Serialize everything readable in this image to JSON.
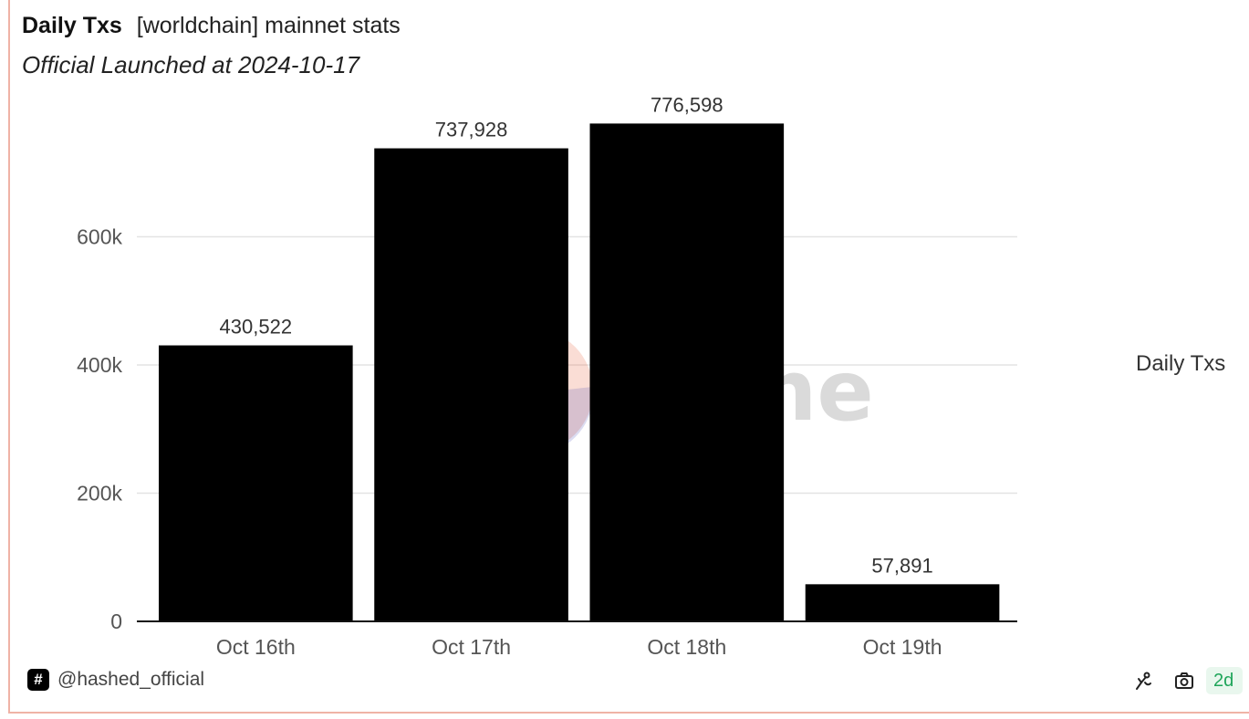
{
  "header": {
    "title": "Daily Txs",
    "subtitle_inline": "[worldchain] mainnet stats",
    "subtitle": "Official Launched at 2024-10-17"
  },
  "chart_data": {
    "type": "bar",
    "categories": [
      "Oct 16th",
      "Oct 17th",
      "Oct 18th",
      "Oct 19th"
    ],
    "series": [
      {
        "name": "Daily Txs",
        "values": [
          430522,
          737928,
          776598,
          57891
        ]
      }
    ],
    "data_labels": [
      "430,522",
      "737,928",
      "776,598",
      "57,891"
    ],
    "y_ticks": [
      0,
      200000,
      400000,
      600000
    ],
    "y_tick_labels": [
      "0",
      "200k",
      "400k",
      "600k"
    ],
    "ylim": [
      0,
      780000
    ],
    "grid": true,
    "legend_position": "right",
    "bar_color": "#000000"
  },
  "watermark": {
    "text": "Dune"
  },
  "footer": {
    "badge_symbol": "#",
    "username": "@hashed_official",
    "age_badge": "2d"
  },
  "icons": {
    "hash": "hash-icon",
    "fork": "fork-icon",
    "camera": "camera-icon"
  }
}
